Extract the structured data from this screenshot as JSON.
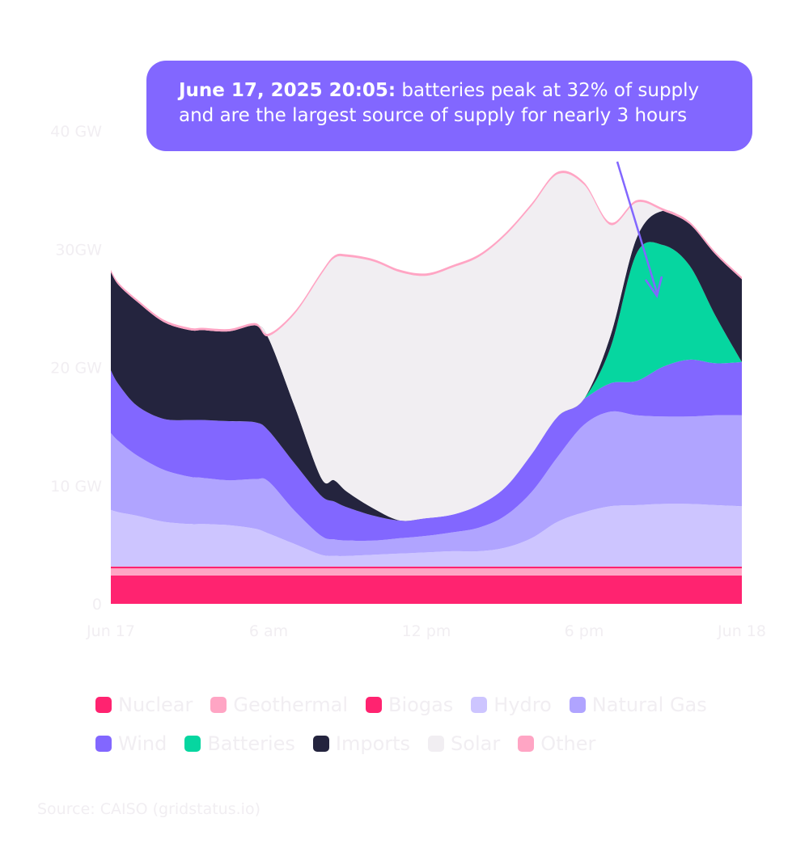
{
  "annotation": {
    "bold": "June 17, 2025 20:05:",
    "line1": " batteries peak at 32% of supply",
    "line2": "and are the largest source of supply for nearly 3 hours"
  },
  "source": "Source: CAISO (gridstatus.io)",
  "chart_data": {
    "type": "area",
    "stacked": true,
    "x_hours": [
      0,
      0.3,
      1,
      2,
      3,
      3.5,
      4.5,
      5.5,
      6,
      7,
      8,
      8.5,
      9,
      10,
      11,
      12,
      13,
      14,
      15,
      16,
      17,
      18,
      19,
      20,
      21,
      22,
      23,
      24
    ],
    "x_ticks": [
      "Jun 17",
      "6 am",
      "12 pm",
      "6 pm",
      "Jun 18"
    ],
    "x_tick_hours": [
      0,
      6,
      12,
      18,
      24
    ],
    "y_ticks": [
      "0",
      "10 GW",
      "20 GW",
      "30GW",
      "40 GW"
    ],
    "y_tick_values": [
      0,
      10,
      20,
      30,
      40
    ],
    "ylim": [
      0,
      40
    ],
    "xlim": [
      0,
      24
    ],
    "series": [
      {
        "name": "Nuclear",
        "color": "#ff2370",
        "values": [
          2.4,
          2.4,
          2.4,
          2.4,
          2.4,
          2.4,
          2.4,
          2.4,
          2.4,
          2.4,
          2.4,
          2.4,
          2.4,
          2.4,
          2.4,
          2.4,
          2.4,
          2.4,
          2.4,
          2.4,
          2.4,
          2.4,
          2.4,
          2.4,
          2.4,
          2.4,
          2.4,
          2.4
        ]
      },
      {
        "name": "Geothermal",
        "color": "#ffa5c4",
        "values": [
          0.6,
          0.6,
          0.6,
          0.6,
          0.6,
          0.6,
          0.6,
          0.6,
          0.6,
          0.6,
          0.6,
          0.6,
          0.6,
          0.6,
          0.6,
          0.6,
          0.6,
          0.6,
          0.6,
          0.6,
          0.6,
          0.6,
          0.6,
          0.6,
          0.6,
          0.6,
          0.6,
          0.6
        ]
      },
      {
        "name": "Biogas",
        "color": "#ff2370",
        "values": [
          0.15,
          0.15,
          0.15,
          0.15,
          0.15,
          0.15,
          0.15,
          0.15,
          0.15,
          0.15,
          0.15,
          0.15,
          0.15,
          0.15,
          0.15,
          0.15,
          0.15,
          0.15,
          0.15,
          0.15,
          0.15,
          0.15,
          0.15,
          0.15,
          0.15,
          0.15,
          0.15,
          0.15
        ]
      },
      {
        "name": "Hydro",
        "color": "#cdc5ff",
        "values": [
          4.8,
          4.6,
          4.3,
          3.8,
          3.6,
          3.6,
          3.5,
          3.2,
          2.8,
          1.9,
          1.0,
          0.9,
          0.9,
          1.0,
          1.1,
          1.2,
          1.3,
          1.3,
          1.6,
          2.4,
          3.8,
          4.6,
          5.1,
          5.2,
          5.3,
          5.3,
          5.2,
          5.1
        ]
      },
      {
        "name": "Natural Gas",
        "color": "#b0a4ff",
        "values": [
          6.5,
          6.0,
          5.1,
          4.4,
          4.0,
          3.9,
          3.8,
          4.2,
          4.4,
          2.8,
          1.6,
          1.4,
          1.3,
          1.2,
          1.3,
          1.4,
          1.6,
          2.0,
          2.7,
          3.9,
          5.5,
          7.4,
          8.0,
          7.6,
          7.4,
          7.4,
          7.6,
          7.7
        ]
      },
      {
        "name": "Wind",
        "color": "#8267ff",
        "values": [
          5.3,
          4.8,
          4.2,
          4.3,
          4.8,
          4.9,
          5.0,
          4.8,
          4.3,
          4.0,
          3.4,
          3.2,
          2.8,
          2.1,
          1.5,
          1.5,
          1.5,
          1.9,
          2.4,
          3.2,
          3.4,
          2.2,
          2.4,
          2.9,
          4.2,
          4.8,
          4.4,
          4.5
        ]
      },
      {
        "name": "Batteries",
        "color": "#06d6a0",
        "values": [
          0,
          0,
          0,
          0,
          0,
          0,
          0,
          0,
          0,
          0,
          0,
          0,
          0,
          0,
          0,
          0,
          0,
          0,
          0,
          0,
          0,
          0,
          3.0,
          10.8,
          10.3,
          8.0,
          4.0,
          0
        ]
      },
      {
        "name": "Imports",
        "color": "#24243e",
        "values": [
          8.3,
          8.4,
          8.8,
          8.2,
          7.6,
          7.6,
          7.6,
          8.2,
          7.8,
          4.8,
          1.5,
          1.8,
          1.3,
          0.6,
          0,
          0,
          0,
          0,
          0,
          0,
          0,
          0,
          1.0,
          1.3,
          2.9,
          3.5,
          5.2,
          7.0
        ]
      },
      {
        "name": "Solar",
        "color": "#f1eef2",
        "values": [
          0,
          0,
          0,
          0,
          0,
          0,
          0,
          0,
          0.2,
          7.9,
          17.2,
          18.8,
          19.9,
          20.9,
          21.0,
          20.5,
          20.9,
          21.0,
          21.3,
          21.0,
          20.5,
          18.1,
          9.4,
          3.0,
          0,
          0,
          0,
          0
        ]
      },
      {
        "name": "Other",
        "color": "#ffa5c4",
        "values": [
          0.2,
          0.2,
          0.2,
          0.2,
          0.2,
          0.2,
          0.2,
          0.2,
          0.2,
          0.2,
          0.2,
          0.2,
          0.2,
          0.2,
          0.2,
          0.2,
          0.2,
          0.2,
          0.2,
          0.2,
          0.2,
          0.2,
          0.2,
          0.2,
          0.2,
          0.2,
          0.2,
          0.2
        ]
      }
    ],
    "legend_order": [
      "Nuclear",
      "Geothermal",
      "Biogas",
      "Hydro",
      "Natural Gas",
      "Wind",
      "Batteries",
      "Imports",
      "Solar",
      "Other"
    ],
    "legend_position": "bottom",
    "grid": false,
    "annotation_arrow_color": "#8267ff"
  }
}
